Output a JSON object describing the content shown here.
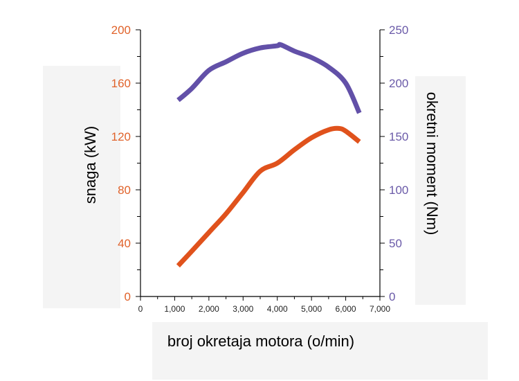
{
  "chart_data": {
    "type": "line",
    "xlabel": "broj okretaja motora (o/min)",
    "ylabel_left": "snaga (kW)",
    "ylabel_right": "okretni moment (Nm)",
    "xlim": [
      0,
      7000
    ],
    "ylim_left": [
      0,
      200
    ],
    "ylim_right": [
      0,
      250
    ],
    "x_ticks": [
      0,
      1000,
      2000,
      3000,
      4000,
      5000,
      6000,
      7000
    ],
    "x_tick_labels": [
      "0",
      "1,000",
      "2,000",
      "3,000",
      "4,000",
      "5,000",
      "6,000",
      "7,000"
    ],
    "y_left_ticks": [
      0,
      40,
      80,
      120,
      160,
      200
    ],
    "y_left_tick_labels": [
      "0",
      "40",
      "80",
      "120",
      "160",
      "200"
    ],
    "y_right_ticks": [
      0,
      50,
      100,
      150,
      200,
      250
    ],
    "y_right_tick_labels": [
      "0",
      "50",
      "100",
      "150",
      "200",
      "250"
    ],
    "grid": false,
    "colors": {
      "power": "#e0521c",
      "torque": "#6250a8",
      "left_axis": "#e0622a",
      "right_axis": "#6a5aa8"
    },
    "series": [
      {
        "axis": "left",
        "color": "#e0521c",
        "x": [
          1100,
          1500,
          2000,
          2500,
          3000,
          3500,
          4000,
          4500,
          5000,
          5500,
          5800,
          6000,
          6400
        ],
        "y": [
          23,
          34,
          48,
          62,
          78,
          94,
          100,
          110,
          119,
          125,
          126,
          124,
          116
        ]
      },
      {
        "axis": "right",
        "color": "#6250a8",
        "x": [
          1100,
          1500,
          2000,
          2500,
          3000,
          3500,
          4000,
          4100,
          4500,
          5000,
          5500,
          6000,
          6400
        ],
        "y": [
          184,
          195,
          212,
          220,
          228,
          233,
          235,
          236,
          230,
          224,
          215,
          200,
          172
        ]
      }
    ]
  }
}
